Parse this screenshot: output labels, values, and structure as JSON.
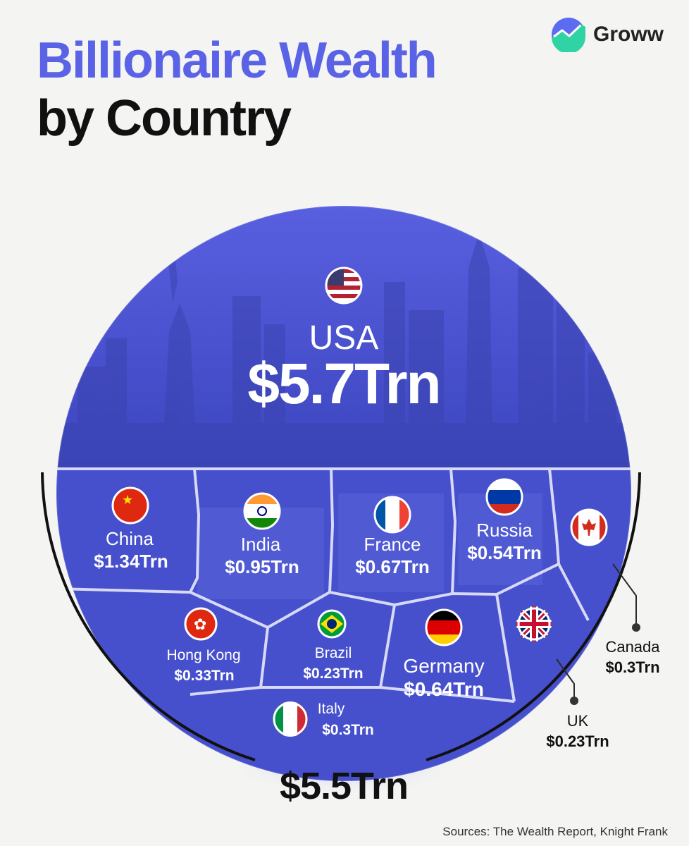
{
  "brand": {
    "name": "Groww",
    "icon": "groww-logo-icon",
    "accent": "#5b6cf0"
  },
  "title": {
    "line1": "Billionaire Wealth",
    "line2": "by Country"
  },
  "source": "Sources: The Wealth Report, Knight Frank",
  "colors": {
    "title_accent": "#5a63e6",
    "circle_blue": "#4f5ad9",
    "deep_blue": "#3b44b8",
    "text": "#111111"
  },
  "chart_data": {
    "type": "treemap-circle",
    "title": "Billionaire Wealth by Country",
    "unit": "Trn",
    "top": {
      "country": "USA",
      "value": 5.7,
      "label": "$5.7Trn",
      "flag": "usa-flag-icon"
    },
    "others_total": {
      "value": 5.5,
      "label": "$5.5Trn"
    },
    "others": [
      {
        "country": "China",
        "value": 1.34,
        "label": "$1.34Trn",
        "flag": "china-flag-icon"
      },
      {
        "country": "India",
        "value": 0.95,
        "label": "$0.95Trn",
        "flag": "india-flag-icon"
      },
      {
        "country": "France",
        "value": 0.67,
        "label": "$0.67Trn",
        "flag": "france-flag-icon"
      },
      {
        "country": "Russia",
        "value": 0.54,
        "label": "$0.54Trn",
        "flag": "russia-flag-icon"
      },
      {
        "country": "Canada",
        "value": 0.3,
        "label": "$0.3Trn",
        "flag": "canada-flag-icon"
      },
      {
        "country": "Hong Kong",
        "value": 0.33,
        "label": "$0.33Trn",
        "flag": "hongkong-flag-icon"
      },
      {
        "country": "Brazil",
        "value": 0.23,
        "label": "$0.23Trn",
        "flag": "brazil-flag-icon"
      },
      {
        "country": "Germany",
        "value": 0.64,
        "label": "$0.64Trn",
        "flag": "germany-flag-icon"
      },
      {
        "country": "UK",
        "value": 0.23,
        "label": "$0.23Trn",
        "flag": "uk-flag-icon"
      },
      {
        "country": "Italy",
        "value": 0.3,
        "label": "$0.3Trn",
        "flag": "italy-flag-icon"
      }
    ]
  }
}
